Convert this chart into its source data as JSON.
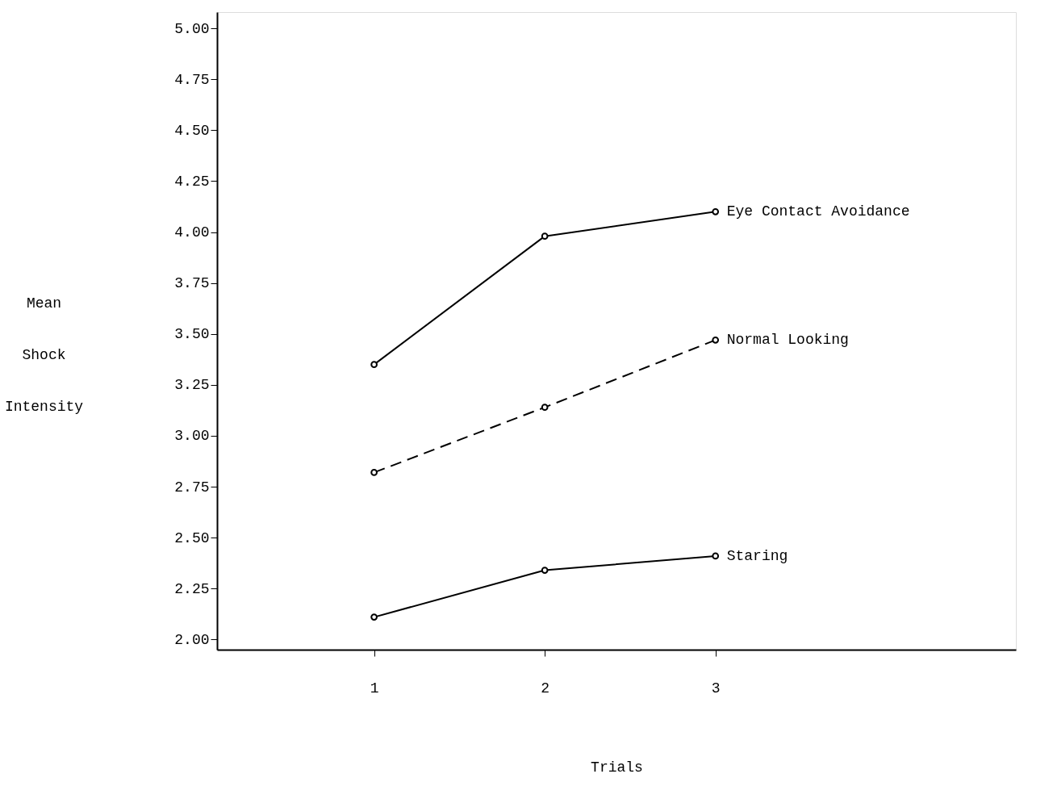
{
  "chart_data": {
    "type": "line",
    "xlabel": "Trials",
    "ylabel": "Mean\nShock\nIntensity",
    "x": [
      1,
      2,
      3
    ],
    "series": [
      {
        "name": "Eye Contact Avoidance",
        "color": "#000000",
        "values": [
          3.35,
          3.98,
          4.1
        ],
        "line_style": "solid"
      },
      {
        "name": "Normal Looking",
        "color": "#000000",
        "values": [
          2.82,
          3.14,
          3.47
        ],
        "line_style": "dashed"
      },
      {
        "name": "Staring",
        "color": "#000000",
        "values": [
          2.11,
          2.34,
          2.41
        ],
        "line_style": "solid"
      }
    ],
    "xlim": [
      0.08,
      4.76
    ],
    "xticks": [
      1,
      2,
      3
    ],
    "ylim": [
      1.95,
      5.08
    ],
    "yticks": [
      {
        "value": 2,
        "label": "2.00"
      },
      {
        "value": 2.25,
        "label": "2.25"
      },
      {
        "value": 2.5,
        "label": "2.50"
      },
      {
        "value": 2.75,
        "label": "2.75"
      },
      {
        "value": 3,
        "label": "3.00"
      },
      {
        "value": 3.25,
        "label": "3.25"
      },
      {
        "value": 3.5,
        "label": "3.50"
      },
      {
        "value": 3.75,
        "label": "3.75"
      },
      {
        "value": 4,
        "label": "4.00"
      },
      {
        "value": 4.25,
        "label": "4.25"
      },
      {
        "value": 4.5,
        "label": "4.50"
      },
      {
        "value": 4.75,
        "label": "4.75"
      },
      {
        "value": 5,
        "label": "5.00"
      }
    ],
    "grid": false,
    "marker": "circle"
  }
}
